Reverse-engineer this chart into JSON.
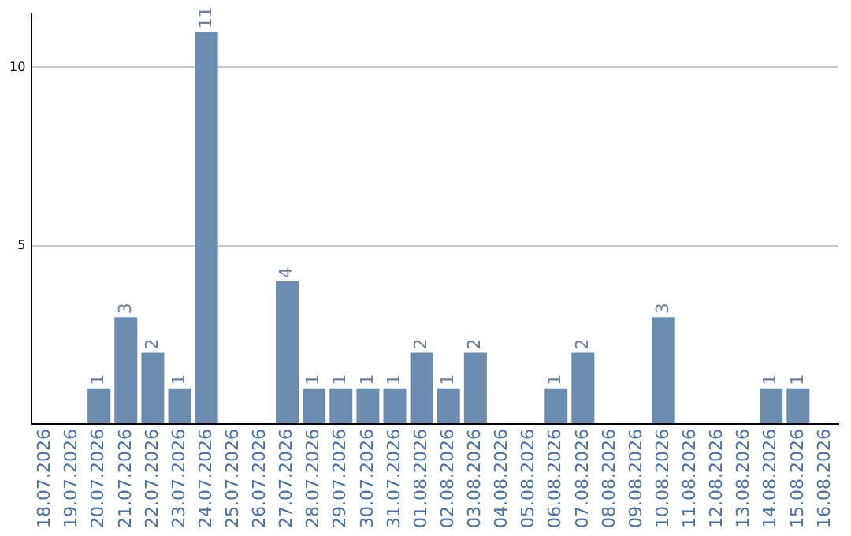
{
  "chart_data": {
    "type": "bar",
    "categories": [
      "18.07.2026",
      "19.07.2026",
      "20.07.2026",
      "21.07.2026",
      "22.07.2026",
      "23.07.2026",
      "24.07.2026",
      "25.07.2026",
      "26.07.2026",
      "27.07.2026",
      "28.07.2026",
      "29.07.2026",
      "30.07.2026",
      "31.07.2026",
      "01.08.2026",
      "02.08.2026",
      "03.08.2026",
      "04.08.2026",
      "05.08.2026",
      "06.08.2026",
      "07.08.2026",
      "08.08.2026",
      "09.08.2026",
      "10.08.2026",
      "11.08.2026",
      "12.08.2026",
      "13.08.2026",
      "14.08.2026",
      "15.08.2026",
      "16.08.2026"
    ],
    "values": [
      0,
      0,
      1,
      3,
      2,
      1,
      11,
      0,
      0,
      4,
      1,
      1,
      1,
      1,
      2,
      1,
      2,
      0,
      0,
      1,
      2,
      0,
      0,
      3,
      0,
      0,
      0,
      1,
      1,
      0
    ],
    "value_labels": [
      null,
      null,
      "1",
      "3",
      "2",
      "1",
      "11",
      null,
      null,
      "4",
      "1",
      "1",
      "1",
      "1",
      "2",
      "1",
      "2",
      null,
      null,
      "1",
      "2",
      null,
      null,
      "3",
      null,
      null,
      null,
      "1",
      "1",
      null
    ],
    "color": "#6b8cae",
    "ylim": [
      0,
      11.5
    ],
    "yticks": [
      {
        "value": 0,
        "label": null
      },
      5,
      10
    ],
    "grid": "y"
  }
}
